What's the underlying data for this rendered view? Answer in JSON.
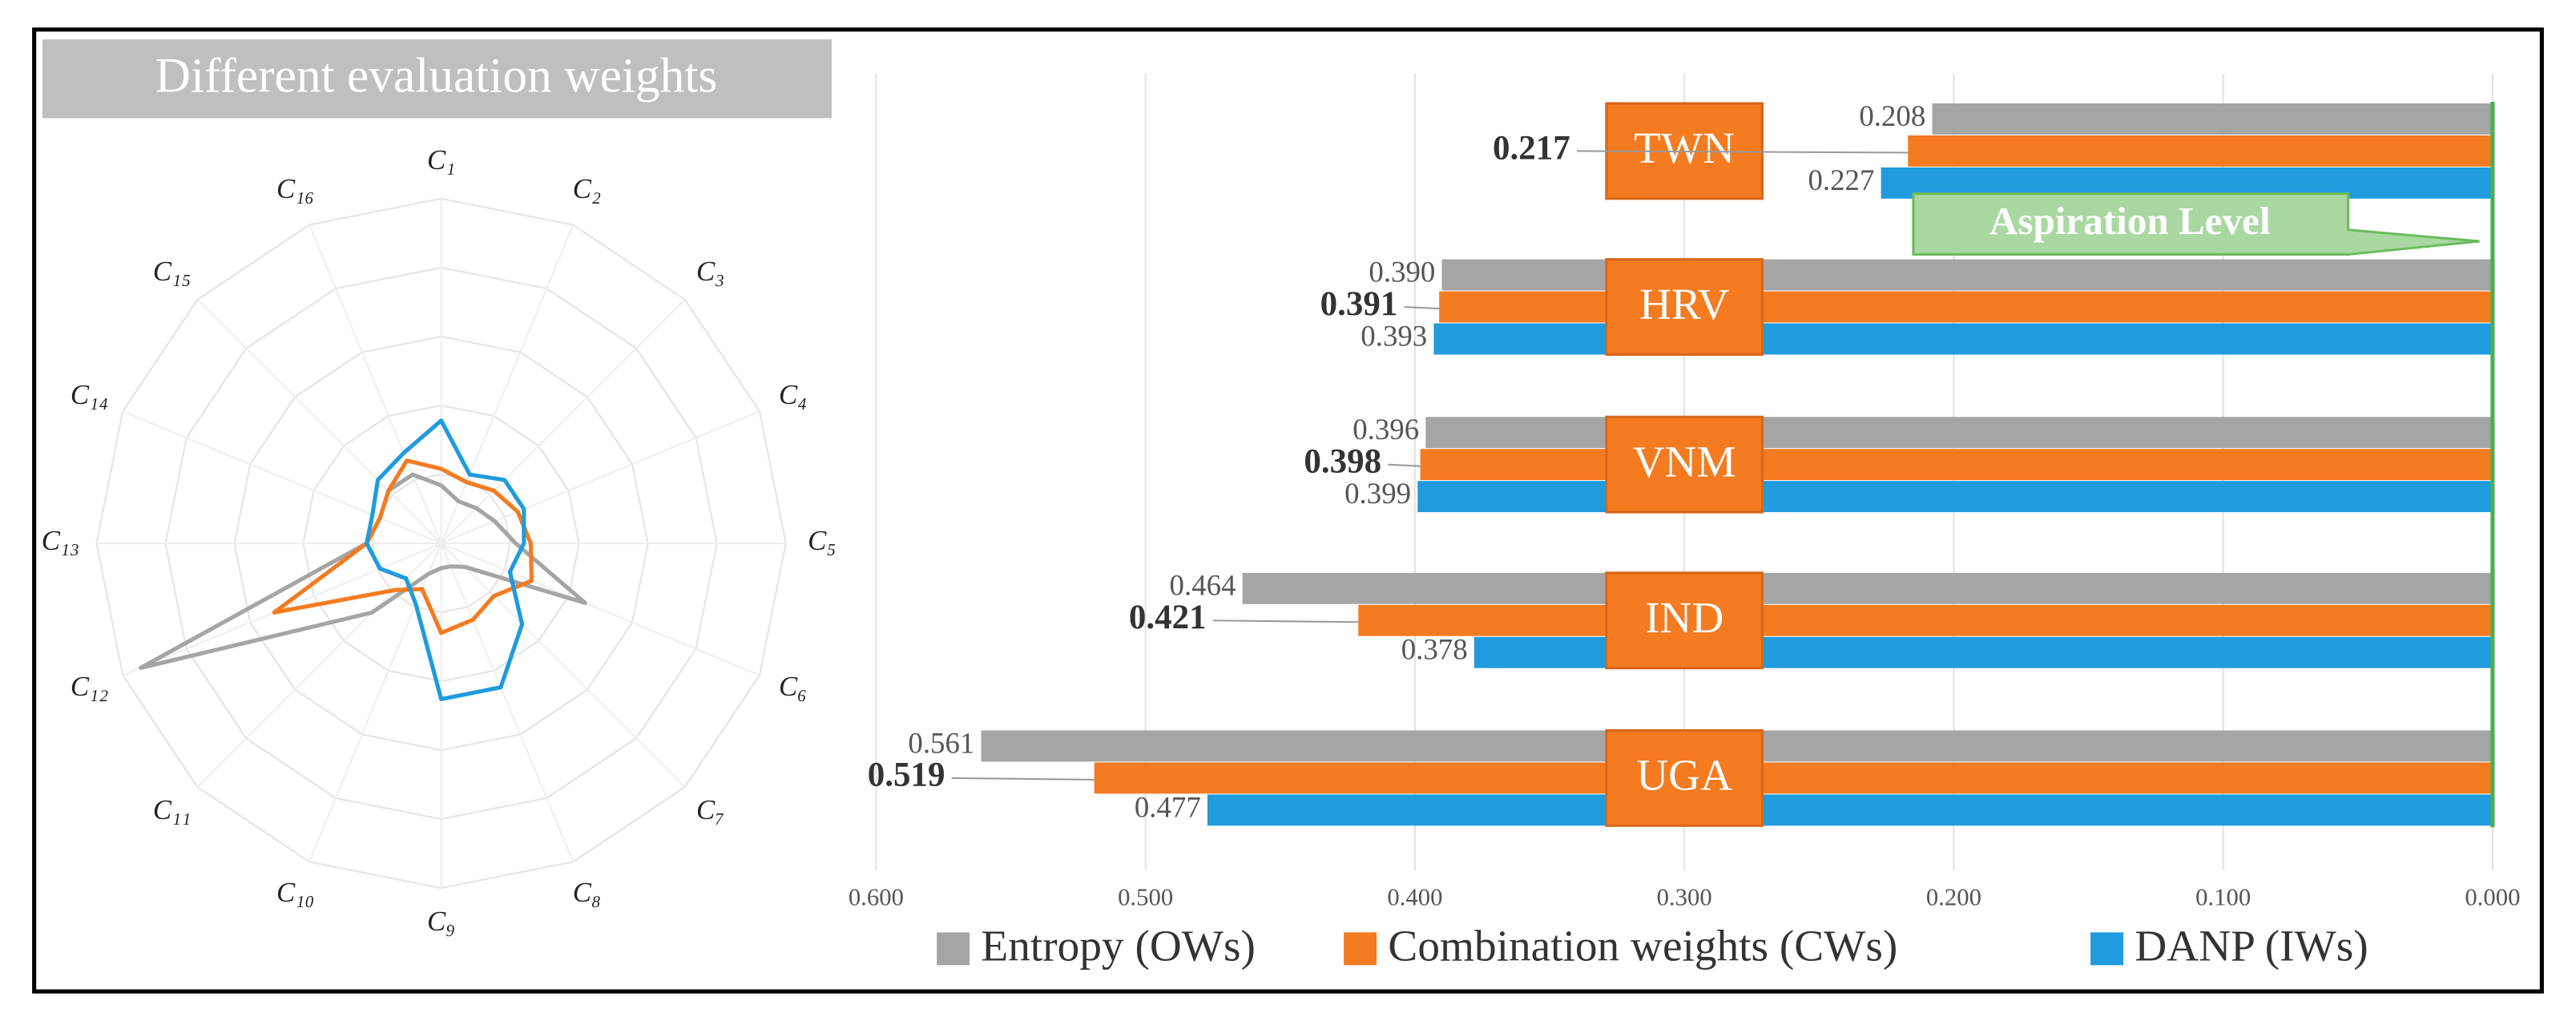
{
  "chart_data": [
    {
      "type": "radar",
      "title": "Different evaluation weights",
      "categories": [
        "C₁",
        "C₂",
        "C₃",
        "C₄",
        "C₅",
        "C₆",
        "C₇",
        "C₈",
        "C₉",
        "C₁₀",
        "C₁₁",
        "C₁₂",
        "C₁₃",
        "C₁₄",
        "C₁₅",
        "C₁₆"
      ],
      "series": [
        {
          "name": "Entropy (OWs)",
          "color": "#a5a5a5",
          "values": [
            0.042,
            0.033,
            0.036,
            0.042,
            0.054,
            0.113,
            0.024,
            0.018,
            0.018,
            0.024,
            0.071,
            0.236,
            0.054,
            0.048,
            0.054,
            0.054
          ]
        },
        {
          "name": "Combination weights (CWs)",
          "color": "#f47b20",
          "values": [
            0.054,
            0.048,
            0.054,
            0.06,
            0.065,
            0.071,
            0.054,
            0.06,
            0.065,
            0.036,
            0.048,
            0.131,
            0.054,
            0.048,
            0.054,
            0.065
          ]
        },
        {
          "name": "DANP (IWs)",
          "color": "#1f9bde",
          "values": [
            0.089,
            0.054,
            0.065,
            0.065,
            0.06,
            0.054,
            0.083,
            0.113,
            0.113,
            0.048,
            0.036,
            0.048,
            0.054,
            0.054,
            0.065,
            0.071
          ]
        }
      ],
      "rlim": [
        0,
        0.25
      ],
      "rticks": [
        0.05,
        0.1,
        0.15,
        0.2,
        0.25
      ],
      "grid": true
    },
    {
      "type": "bar",
      "orientation": "horizontal",
      "categories": [
        "TWN",
        "HRV",
        "VNM",
        "IND",
        "UGA"
      ],
      "series": [
        {
          "name": "Entropy (OWs)",
          "color": "#a5a5a5",
          "values": [
            0.208,
            0.39,
            0.396,
            0.464,
            0.561
          ],
          "value_labels": [
            "0.208",
            "0.390",
            "0.396",
            "0.464",
            "0.561"
          ]
        },
        {
          "name": "Combination weights (CWs)",
          "color": "#f47b20",
          "values": [
            0.217,
            0.391,
            0.398,
            0.421,
            0.519
          ],
          "value_labels": [
            "0.217",
            "0.391",
            "0.398",
            "0.421",
            "0.519"
          ]
        },
        {
          "name": "DANP (IWs)",
          "color": "#1f9bde",
          "values": [
            0.227,
            0.393,
            0.399,
            0.378,
            0.477
          ],
          "value_labels": [
            "0.227",
            "0.393",
            "0.399",
            "0.378",
            "0.477"
          ]
        }
      ],
      "xlim": [
        0.6,
        0
      ],
      "xticks": [
        {
          "value": 0.6,
          "label": "0.600"
        },
        {
          "value": 0.5,
          "label": "0.500"
        },
        {
          "value": 0.4,
          "label": "0.400"
        },
        {
          "value": 0.3,
          "label": "0.300"
        },
        {
          "value": 0.2,
          "label": "0.200"
        },
        {
          "value": 0.1,
          "label": "0.100"
        },
        {
          "value": 0,
          "label": "0.000"
        }
      ],
      "grid": true,
      "annotation": "Aspiration Level",
      "legend": "bottom"
    }
  ]
}
